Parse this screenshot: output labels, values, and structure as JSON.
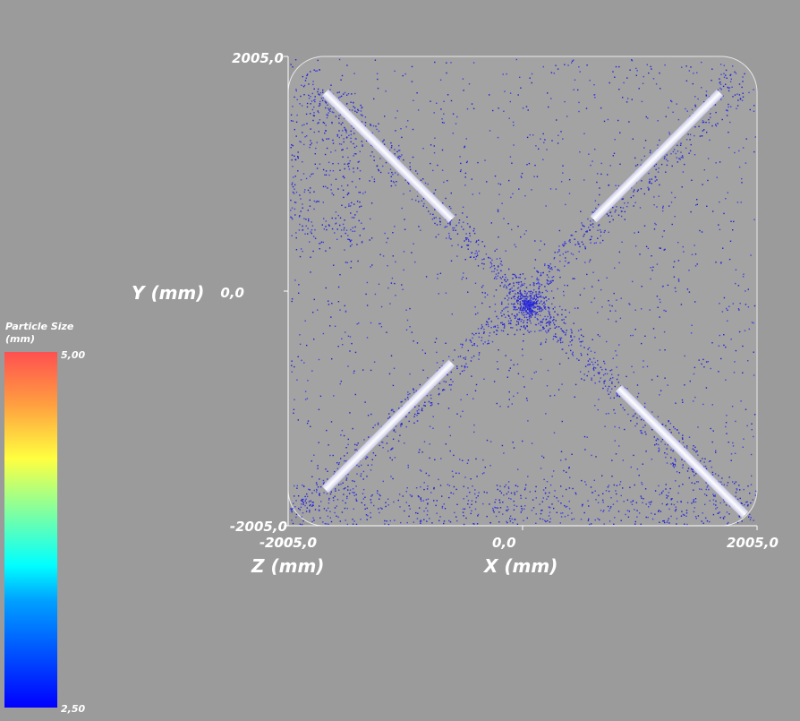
{
  "y_axis": {
    "title": "Y (mm)",
    "ticks": [
      "2005,0",
      "0,0",
      "-2005,0"
    ]
  },
  "x_axis": {
    "title": "X (mm)",
    "ticks": [
      "0,0",
      "2005,0"
    ]
  },
  "z_axis": {
    "title": "Z (mm)",
    "ticks": [
      "-2005,0",
      "2005,0"
    ]
  },
  "colorbar": {
    "title": "Particle Size (mm)",
    "max_label": "5,00",
    "min_label": "2,50"
  }
}
